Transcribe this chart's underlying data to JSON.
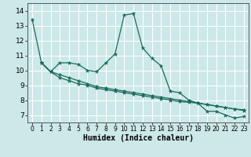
{
  "title": "",
  "xlabel": "Humidex (Indice chaleur)",
  "bg_color": "#cce8e8",
  "grid_color": "#ffffff",
  "line_color": "#1a6b5a",
  "xlim": [
    -0.5,
    23.5
  ],
  "ylim": [
    6.5,
    14.5
  ],
  "xticks": [
    0,
    1,
    2,
    3,
    4,
    5,
    6,
    7,
    8,
    9,
    10,
    11,
    12,
    13,
    14,
    15,
    16,
    17,
    18,
    19,
    20,
    21,
    22,
    23
  ],
  "yticks": [
    7,
    8,
    9,
    10,
    11,
    12,
    13,
    14
  ],
  "series": [
    {
      "x": [
        0,
        1
      ],
      "y": [
        13.4,
        10.5
      ]
    },
    {
      "x": [
        1,
        2,
        3,
        4,
        5,
        6,
        7,
        8,
        9,
        10,
        11,
        12,
        13,
        14,
        15,
        16,
        17,
        18,
        19,
        20,
        21,
        22,
        23
      ],
      "y": [
        10.5,
        9.9,
        10.5,
        10.5,
        10.4,
        10.0,
        9.9,
        10.5,
        11.1,
        13.7,
        13.8,
        11.5,
        10.8,
        10.3,
        8.6,
        8.5,
        8.0,
        7.8,
        7.25,
        7.25,
        7.0,
        6.8,
        6.9
      ]
    },
    {
      "x": [
        1,
        2,
        3,
        4,
        5,
        6,
        7,
        8,
        9,
        10,
        11,
        12,
        13,
        14,
        15,
        16,
        17,
        18,
        19,
        20,
        21,
        22,
        23
      ],
      "y": [
        10.5,
        9.9,
        9.7,
        9.5,
        9.3,
        9.1,
        8.9,
        8.8,
        8.7,
        8.6,
        8.5,
        8.4,
        8.3,
        8.2,
        8.1,
        8.0,
        7.9,
        7.8,
        7.7,
        7.6,
        7.5,
        7.4,
        7.3
      ]
    },
    {
      "x": [
        1,
        2,
        3,
        4,
        5,
        6,
        7,
        8,
        9,
        10,
        11,
        12,
        13,
        14,
        15,
        16,
        17,
        18,
        19,
        20,
        21,
        22,
        23
      ],
      "y": [
        10.5,
        9.9,
        9.5,
        9.3,
        9.1,
        9.0,
        8.8,
        8.7,
        8.6,
        8.5,
        8.4,
        8.3,
        8.2,
        8.1,
        8.0,
        7.9,
        7.85,
        7.8,
        7.7,
        7.6,
        7.5,
        7.4,
        7.35
      ]
    }
  ],
  "tick_fontsize": 5.5,
  "xlabel_fontsize": 7
}
